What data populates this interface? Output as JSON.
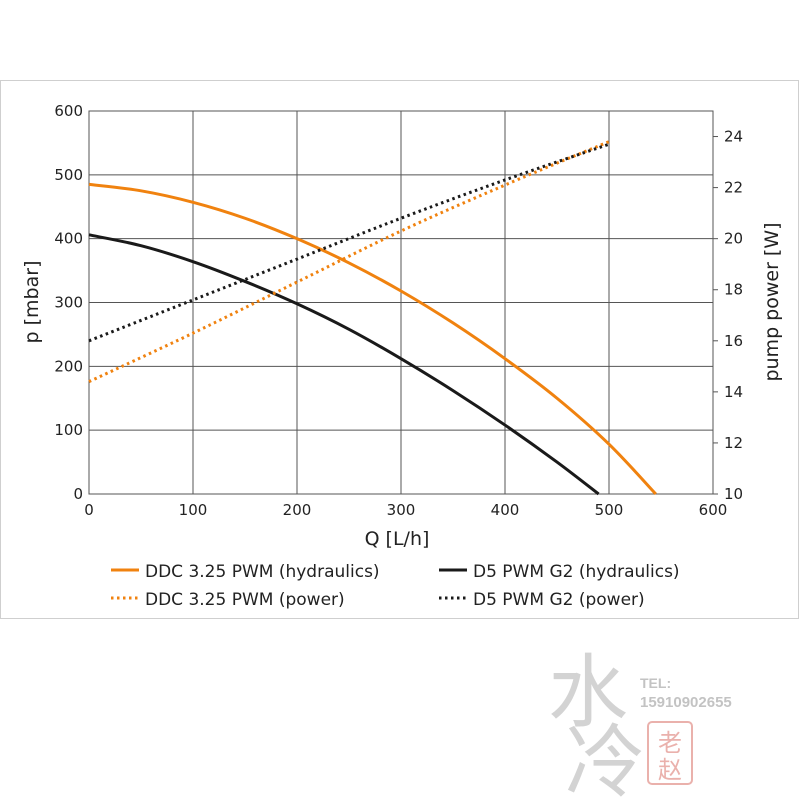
{
  "chart_data": {
    "type": "line",
    "title": "",
    "xlabel": "Q [L/h]",
    "ylabel": "p [mbar]",
    "y2label": "pump power [W]",
    "xlim": [
      0,
      600
    ],
    "ylim": [
      0,
      600
    ],
    "y2lim": [
      10,
      25
    ],
    "xticks": [
      "0",
      "100",
      "200",
      "300",
      "400",
      "500",
      "600"
    ],
    "yticks": [
      "0",
      "100",
      "200",
      "300",
      "400",
      "500",
      "600"
    ],
    "y2ticks": [
      "10",
      "12",
      "14",
      "16",
      "18",
      "20",
      "22",
      "24"
    ],
    "grid": true,
    "legend_position": "bottom",
    "colors": {
      "orange": "#f0820f",
      "black": "#1a1a1a",
      "grid": "#555555"
    },
    "series": [
      {
        "name": "DDC 3.25 PWM (hydraulics)",
        "axis": "left",
        "style": "solid",
        "color": "#f0820f",
        "x": [
          0,
          50,
          100,
          150,
          200,
          250,
          300,
          350,
          400,
          450,
          500,
          545
        ],
        "y": [
          485,
          475,
          457,
          432,
          400,
          362,
          318,
          268,
          212,
          150,
          78,
          0
        ]
      },
      {
        "name": "D5 PWM G2 (hydraulics)",
        "axis": "left",
        "style": "solid",
        "color": "#1a1a1a",
        "x": [
          0,
          50,
          100,
          150,
          200,
          250,
          300,
          350,
          400,
          450,
          490
        ],
        "y": [
          406,
          389,
          364,
          333,
          298,
          258,
          212,
          162,
          108,
          50,
          0
        ]
      },
      {
        "name": "DDC 3.25 PWM (power)",
        "axis": "right",
        "style": "dotted",
        "color": "#f0820f",
        "x": [
          0,
          100,
          200,
          300,
          400,
          500
        ],
        "y": [
          14.4,
          16.3,
          18.3,
          20.3,
          22.1,
          23.8
        ]
      },
      {
        "name": "D5 PWM G2 (power)",
        "axis": "right",
        "style": "dotted",
        "color": "#1a1a1a",
        "x": [
          0,
          100,
          200,
          300,
          400,
          500
        ],
        "y": [
          16.0,
          17.6,
          19.2,
          20.8,
          22.3,
          23.7
        ]
      }
    ]
  },
  "watermark": {
    "chars": [
      "水",
      "冷"
    ],
    "tel_label": "TEL:",
    "tel_number": "15910902655",
    "seal_chars": [
      "老",
      "赵"
    ]
  }
}
